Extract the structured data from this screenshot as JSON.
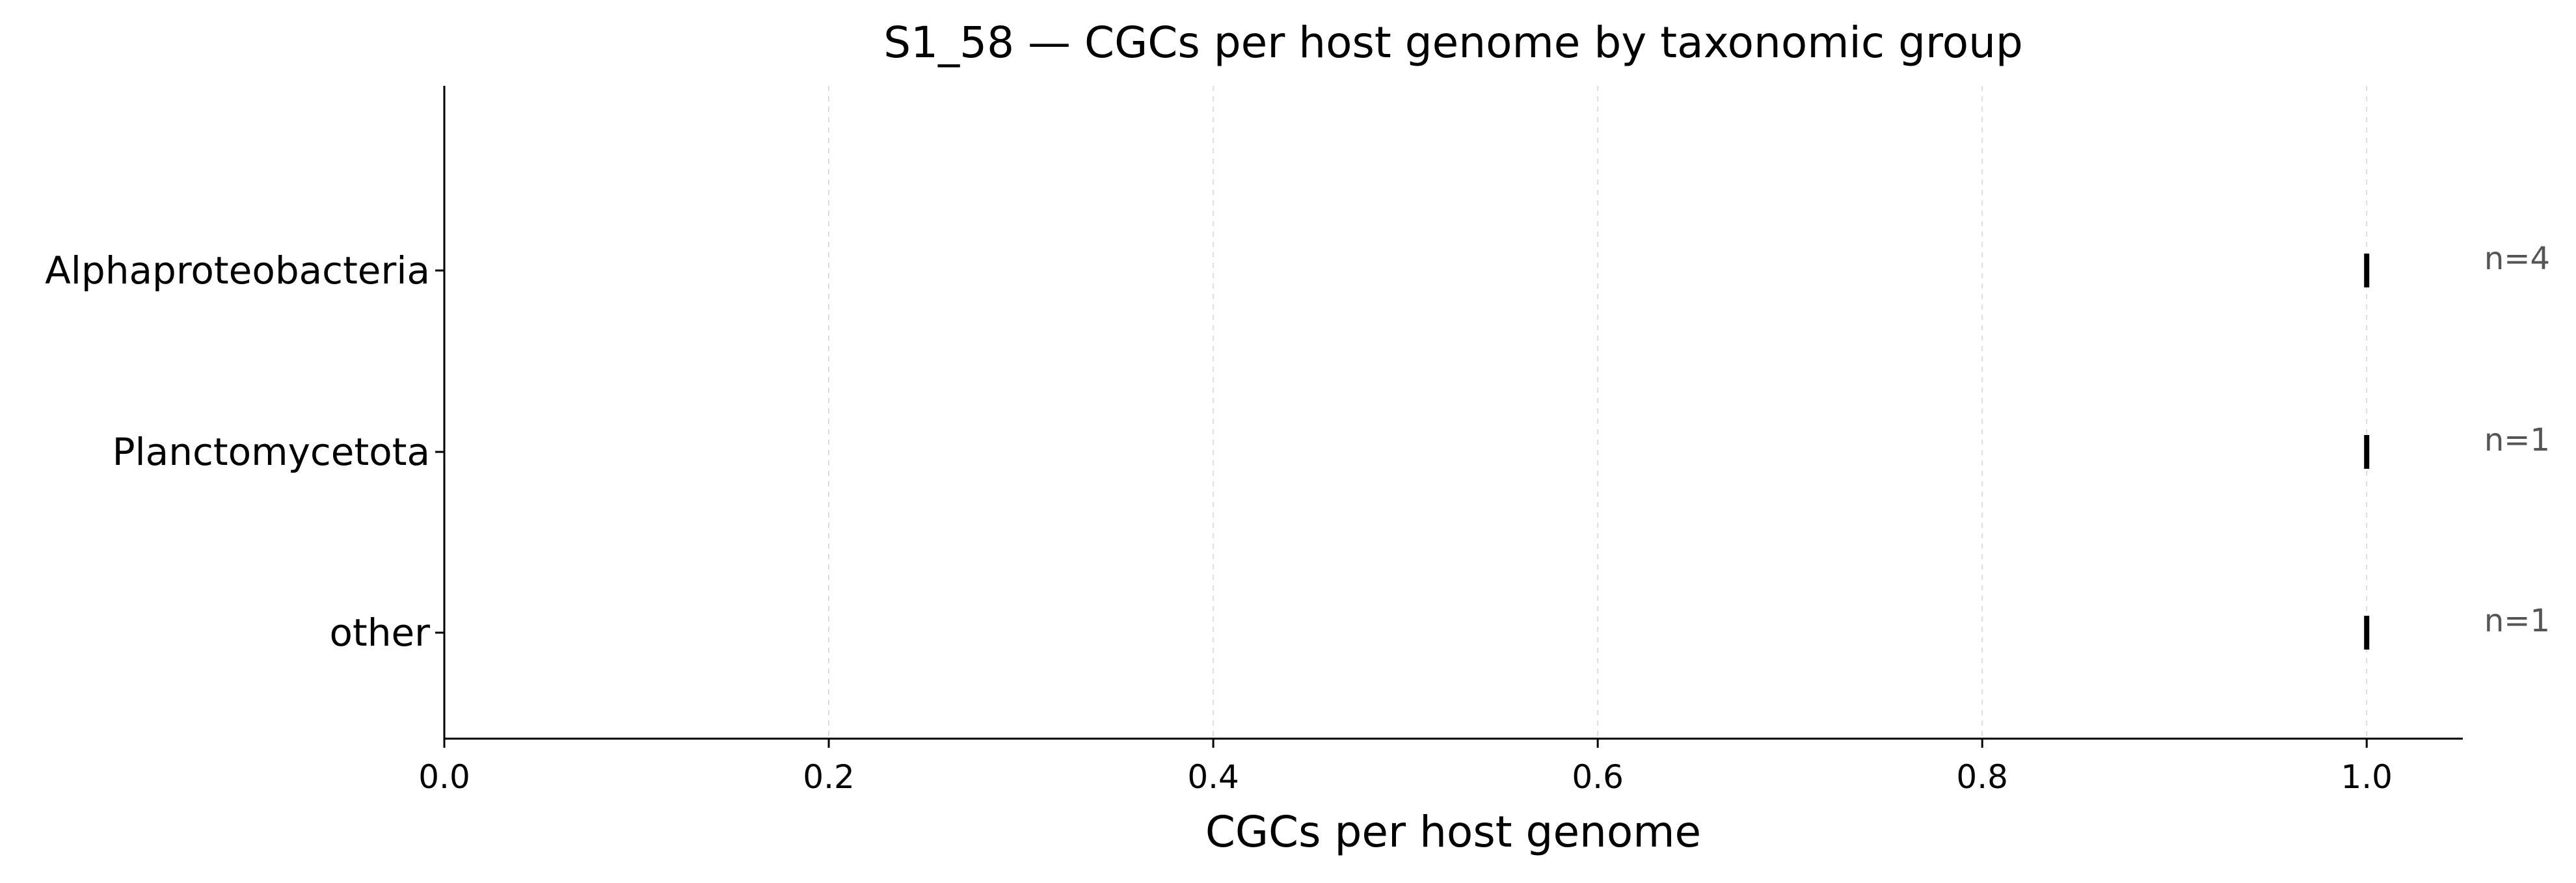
{
  "chart_data": {
    "type": "scatter",
    "title": "S1_58 — CGCs per host genome by taxonomic group",
    "xlabel": "CGCs per host genome",
    "ylabel": "",
    "xlim": [
      0,
      1.05
    ],
    "xticks": [
      0.0,
      0.2,
      0.4,
      0.6,
      0.8,
      1.0
    ],
    "xtick_labels": [
      "0.0",
      "0.2",
      "0.4",
      "0.6",
      "0.8",
      "1.0"
    ],
    "categories": [
      "Alphaproteobacteria",
      "Planctomycetota",
      "other"
    ],
    "values": [
      1.0,
      1.0,
      1.0
    ],
    "annotations": [
      "n=4",
      "n=1",
      "n=1"
    ],
    "grid": "vertical dashed",
    "marker": "vertical tick",
    "colors": {
      "marker": "#000000",
      "grid": "#dddddd",
      "axis": "#000000",
      "annotation": "#555555"
    }
  }
}
